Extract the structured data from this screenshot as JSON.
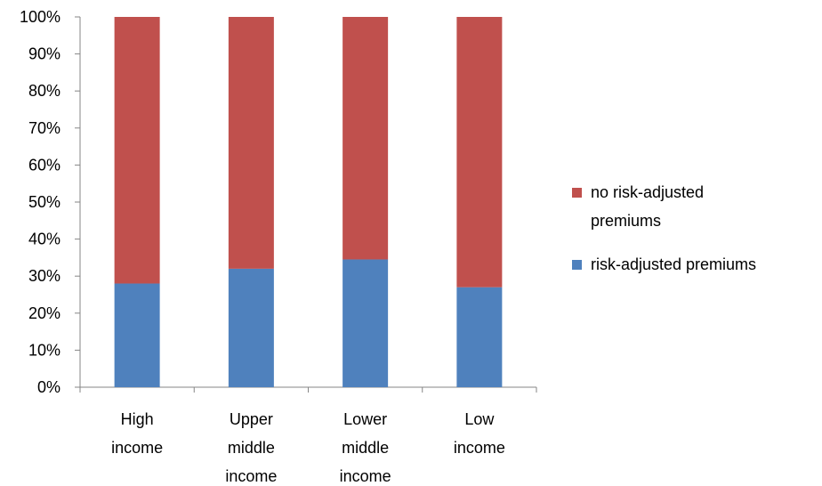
{
  "chart_data": {
    "type": "bar",
    "stacked": true,
    "categories": [
      [
        "High",
        "income"
      ],
      [
        "Upper",
        "middle",
        "income"
      ],
      [
        "Lower",
        "middle",
        "income"
      ],
      [
        "Low",
        "income"
      ]
    ],
    "series": [
      {
        "name": "risk-adjusted premiums",
        "color": "#4F81BD",
        "values": [
          28,
          32,
          34.5,
          27
        ]
      },
      {
        "name": "no risk-adjusted premiums",
        "color": "#C0504D",
        "values": [
          72,
          68,
          65.5,
          73
        ]
      }
    ],
    "ylim": [
      0,
      100
    ],
    "yticks": [
      "0%",
      "10%",
      "20%",
      "30%",
      "40%",
      "50%",
      "60%",
      "70%",
      "80%",
      "90%",
      "100%"
    ],
    "grid": false,
    "legend": {
      "position": "right",
      "entries": [
        {
          "lines": [
            "no risk-adjusted",
            "premiums"
          ],
          "color": "#C0504D"
        },
        {
          "lines": [
            "risk-adjusted premiums"
          ],
          "color": "#4F81BD"
        }
      ]
    }
  }
}
